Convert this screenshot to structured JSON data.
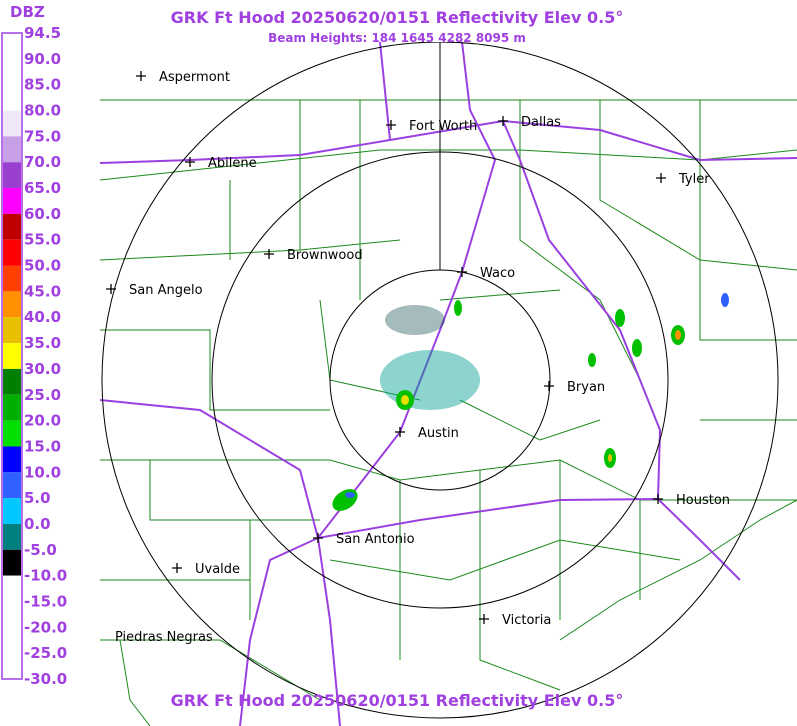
{
  "header": {
    "title": "GRK Ft Hood 20250620/0151 Reflectivity Elev 0.5°",
    "subtitle": "Beam Heights: 184 1645 4282 8095 m"
  },
  "footer": {
    "title": "GRK Ft Hood 20250620/0151 Reflectivity Elev 0.5°"
  },
  "legend": {
    "unit": "DBZ",
    "labels": [
      "94.5",
      "90.0",
      "85.0",
      "80.0",
      "75.0",
      "70.0",
      "65.0",
      "60.0",
      "55.0",
      "50.0",
      "45.0",
      "40.0",
      "35.0",
      "30.0",
      "25.0",
      "20.0",
      "15.0",
      "10.0",
      "5.0",
      "0.0",
      "-5.0",
      "-10.0",
      "-15.0",
      "-20.0",
      "-25.0",
      "-30.0"
    ],
    "colors": [
      "#ffffff",
      "#ffffff",
      "#ffffff",
      "#f0e8f8",
      "#c8a0e8",
      "#9a40d0",
      "#ff00ff",
      "#c00000",
      "#ff0000",
      "#ff4000",
      "#ff9000",
      "#e8c000",
      "#ffff00",
      "#008000",
      "#00b000",
      "#00e000",
      "#0000ff",
      "#3060ff",
      "#00c8ff",
      "#008080",
      "#000000",
      "#ffffff",
      "#ffffff",
      "#ffffff",
      "#ffffff"
    ]
  },
  "cities": [
    "Aspermont",
    "Fort Worth",
    "Dallas",
    "Abilene",
    "Tyler",
    "Brownwood",
    "Waco",
    "San Angelo",
    "Bryan",
    "Austin",
    "Houston",
    "San Antonio",
    "Uvalde",
    "Victoria",
    "Piedras Negras"
  ]
}
